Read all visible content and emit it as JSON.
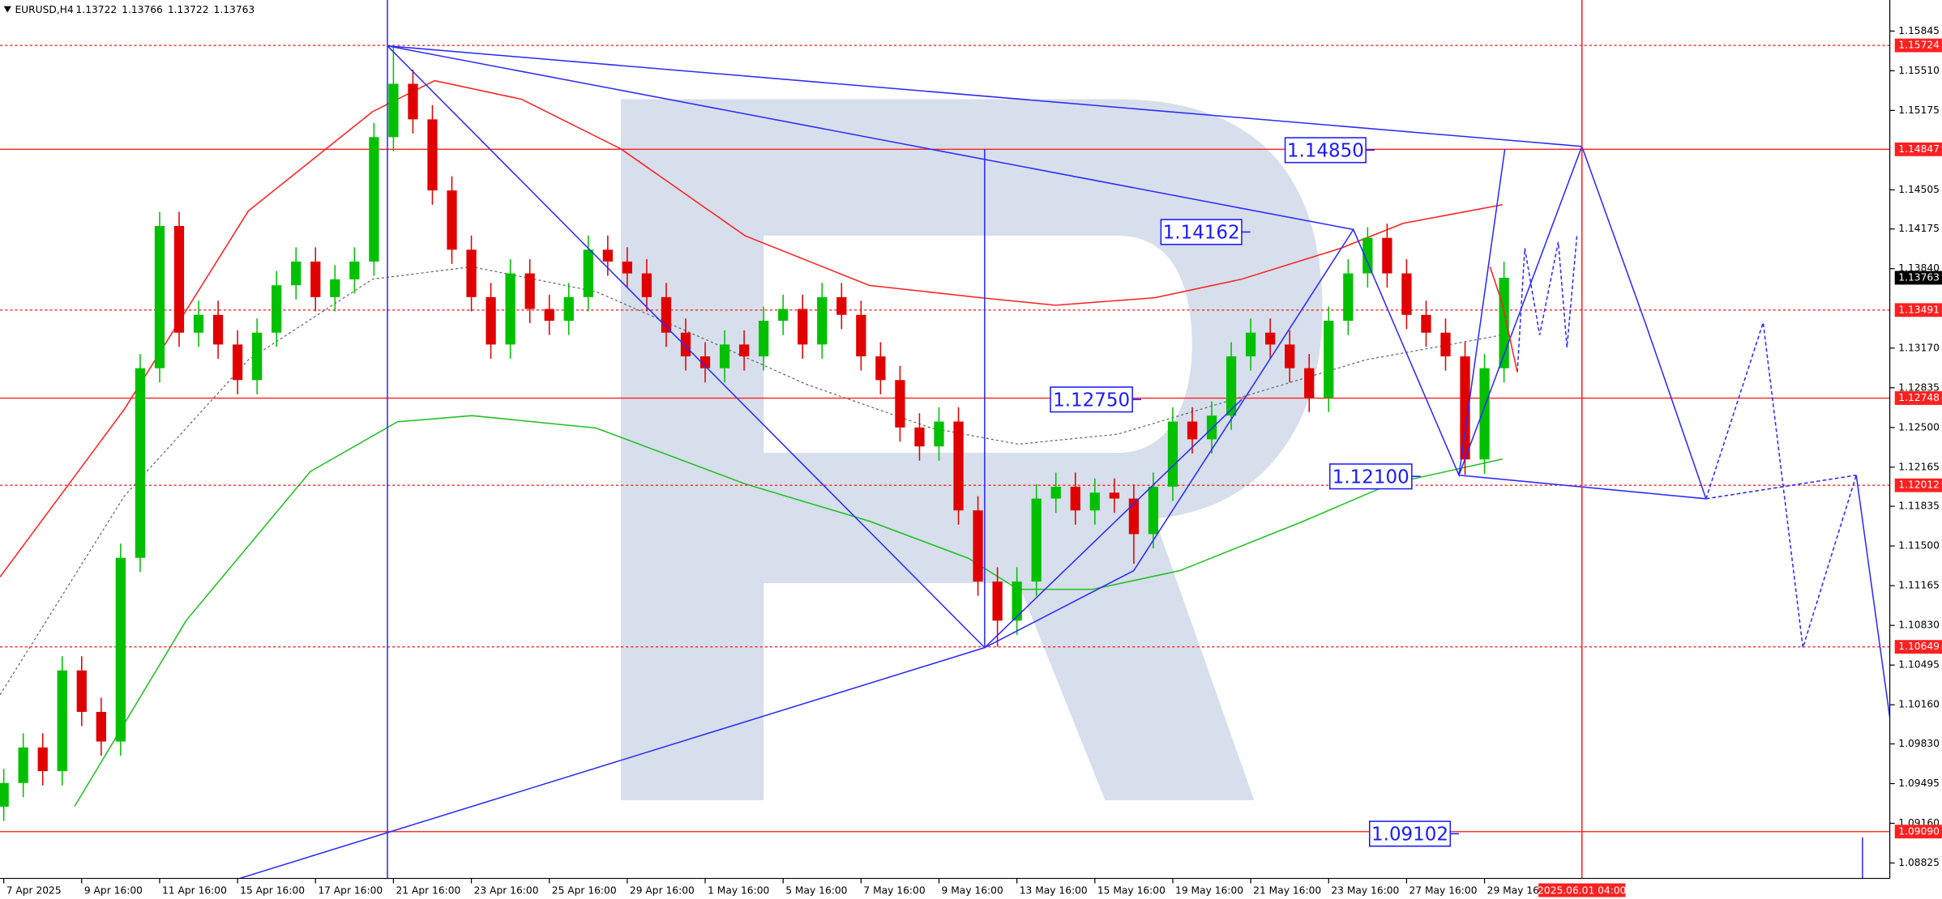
{
  "chart_data": {
    "type": "candlestick",
    "symbol": "EURUSD,H4",
    "quote": [
      1.13722,
      1.13766,
      1.13722,
      1.13763
    ],
    "up_color": "#00c000",
    "down_color": "#e00000",
    "ylim": [
      1.08695,
      1.16107
    ],
    "yticks": [
      1.15845,
      {
        "value": 1.1551,
        "label": "1.15510"
      },
      1.15175,
      1.14505,
      1.14175,
      {
        "value": 1.1384,
        "label": "1.13840"
      },
      {
        "value": 1.1317,
        "label": "1.13170"
      },
      1.12835,
      {
        "value": 1.125,
        "label": "1.12500"
      },
      1.12165,
      1.11835,
      {
        "value": 1.115,
        "label": "1.11500"
      },
      1.11165,
      {
        "value": 1.1083,
        "label": "1.10830"
      },
      1.10495,
      {
        "value": 1.1016,
        "label": "1.10160"
      },
      {
        "value": 1.0983,
        "label": "1.09830"
      },
      1.09495,
      {
        "value": 1.0916,
        "label": "1.09160"
      },
      1.08825
    ],
    "xlim": [
      -0.57,
      290.4
    ],
    "xticks": [
      {
        "value": 0,
        "label": "7 Apr 2025"
      },
      {
        "value": 12,
        "label": "9 Apr 16:00"
      },
      {
        "value": 24,
        "label": "11 Apr 16:00"
      },
      {
        "value": 36,
        "label": "15 Apr 16:00"
      },
      {
        "value": 48,
        "label": "17 Apr 16:00"
      },
      {
        "value": 60,
        "label": "21 Apr 16:00"
      },
      {
        "value": 72,
        "label": "23 Apr 16:00"
      },
      {
        "value": 84,
        "label": "25 Apr 16:00"
      },
      {
        "value": 96,
        "label": "29 Apr 16:00"
      },
      {
        "value": 108,
        "label": "1 May 16:00"
      },
      {
        "value": 120,
        "label": "5 May 16:00"
      },
      {
        "value": 132,
        "label": "7 May 16:00"
      },
      {
        "value": 144,
        "label": "9 May 16:00"
      },
      {
        "value": 156,
        "label": "13 May 16:00"
      },
      {
        "value": 168,
        "label": "15 May 16:00"
      },
      {
        "value": 180,
        "label": "19 May 16:00"
      },
      {
        "value": 192,
        "label": "21 May 16:00"
      },
      {
        "value": 204,
        "label": "23 May 16:00"
      },
      {
        "value": 216,
        "label": "27 May 16:00"
      },
      {
        "value": 228,
        "label": "29 May 16:00"
      }
    ],
    "cursor": {
      "value": 243,
      "label": "2025.06.01 04:00"
    },
    "current_price": 1.13763,
    "levels": [
      {
        "value": 1.15724,
        "dash": "dotted"
      },
      {
        "value": 1.14847,
        "dash": "solid"
      },
      {
        "value": 1.13491,
        "dash": "dotted"
      },
      {
        "value": 1.12748,
        "dash": "solid"
      },
      {
        "value": 1.12012,
        "dash": "dotted"
      },
      {
        "value": 1.10649,
        "dash": "dotted"
      },
      {
        "value": 1.0909,
        "label": "1.09090",
        "dash": "solid"
      }
    ],
    "annotations": [
      "1.14850",
      "1.14162",
      "1.12750",
      "1.12100",
      "1.09102"
    ],
    "x": [
      0,
      3,
      6,
      9,
      12,
      15,
      18,
      21,
      24,
      27,
      30,
      33,
      36,
      39,
      42,
      45,
      48,
      51,
      54,
      57,
      60,
      63,
      66,
      69,
      72,
      75,
      78,
      81,
      84,
      87,
      90,
      93,
      96,
      99,
      102,
      105,
      108,
      111,
      114,
      117,
      120,
      123,
      126,
      129,
      132,
      135,
      138,
      141,
      144,
      147,
      150,
      153,
      156,
      159,
      162,
      165,
      168,
      171,
      174,
      177,
      180,
      183,
      186,
      189,
      192,
      195,
      198,
      201,
      204,
      207,
      210,
      213,
      216,
      219,
      222,
      225,
      228,
      231
    ],
    "open": [
      1.093,
      1.095,
      1.098,
      1.096,
      1.1045,
      1.101,
      1.0985,
      1.114,
      1.13,
      1.142,
      1.133,
      1.1345,
      1.132,
      1.129,
      1.133,
      1.137,
      1.139,
      1.136,
      1.1375,
      1.139,
      1.1495,
      1.154,
      1.151,
      1.145,
      1.14,
      1.136,
      1.132,
      1.138,
      1.135,
      1.134,
      1.136,
      1.14,
      1.139,
      1.138,
      1.136,
      1.133,
      1.131,
      1.13,
      1.132,
      1.131,
      1.134,
      1.135,
      1.132,
      1.136,
      1.1345,
      1.131,
      1.129,
      1.125,
      1.1234,
      1.1255,
      1.118,
      1.112,
      1.1087,
      1.112,
      1.119,
      1.12,
      1.118,
      1.1195,
      1.119,
      1.116,
      1.12,
      1.1255,
      1.124,
      1.126,
      1.131,
      1.133,
      1.132,
      1.13,
      1.1275,
      1.134,
      1.138,
      1.141,
      1.138,
      1.1345,
      1.133,
      1.131,
      1.1223,
      1.13
    ],
    "high": [
      1.0962,
      1.0992,
      1.0992,
      1.1057,
      1.1057,
      1.1022,
      1.1152,
      1.1312,
      1.1432,
      1.1432,
      1.1357,
      1.1357,
      1.1332,
      1.1342,
      1.1382,
      1.1402,
      1.1402,
      1.1387,
      1.1402,
      1.1507,
      1.15724,
      1.1552,
      1.1522,
      1.1462,
      1.1412,
      1.1372,
      1.1392,
      1.1392,
      1.1362,
      1.1372,
      1.1412,
      1.1412,
      1.1402,
      1.1392,
      1.1372,
      1.1342,
      1.1322,
      1.1332,
      1.1332,
      1.1352,
      1.1362,
      1.1362,
      1.1372,
      1.1372,
      1.1357,
      1.1322,
      1.1302,
      1.1262,
      1.1267,
      1.1267,
      1.1192,
      1.1132,
      1.1132,
      1.1202,
      1.1212,
      1.1212,
      1.1207,
      1.1207,
      1.1202,
      1.1212,
      1.1267,
      1.1267,
      1.1272,
      1.1322,
      1.1342,
      1.1342,
      1.1332,
      1.1312,
      1.1352,
      1.1392,
      1.1419,
      1.1422,
      1.1392,
      1.1357,
      1.1342,
      1.1322,
      1.1312,
      1.139
    ],
    "low": [
      1.0918,
      1.0938,
      1.0948,
      1.0948,
      1.0998,
      1.0973,
      1.0973,
      1.1128,
      1.1288,
      1.1318,
      1.1318,
      1.1308,
      1.1278,
      1.1278,
      1.1318,
      1.1358,
      1.1348,
      1.1348,
      1.1363,
      1.1378,
      1.1483,
      1.1498,
      1.1438,
      1.1388,
      1.1348,
      1.1308,
      1.1308,
      1.1338,
      1.1328,
      1.1328,
      1.1348,
      1.1378,
      1.1368,
      1.1348,
      1.1318,
      1.1298,
      1.1288,
      1.1288,
      1.1298,
      1.1298,
      1.1328,
      1.1308,
      1.1308,
      1.1333,
      1.1298,
      1.1278,
      1.1238,
      1.1222,
      1.1222,
      1.1168,
      1.1108,
      1.10649,
      1.1075,
      1.1108,
      1.1178,
      1.1168,
      1.1168,
      1.1178,
      1.1135,
      1.1148,
      1.1188,
      1.1228,
      1.1228,
      1.1248,
      1.1298,
      1.1308,
      1.1288,
      1.1263,
      1.1263,
      1.1328,
      1.1368,
      1.1368,
      1.1333,
      1.1318,
      1.1298,
      1.121,
      1.1211,
      1.1288
    ],
    "close": [
      1.095,
      1.098,
      1.096,
      1.1045,
      1.101,
      1.0985,
      1.114,
      1.13,
      1.142,
      1.133,
      1.1345,
      1.132,
      1.129,
      1.133,
      1.137,
      1.139,
      1.136,
      1.1375,
      1.139,
      1.1495,
      1.154,
      1.151,
      1.145,
      1.14,
      1.136,
      1.132,
      1.138,
      1.135,
      1.134,
      1.136,
      1.14,
      1.139,
      1.138,
      1.136,
      1.133,
      1.131,
      1.13,
      1.132,
      1.131,
      1.134,
      1.135,
      1.132,
      1.136,
      1.1345,
      1.131,
      1.129,
      1.125,
      1.1234,
      1.1255,
      1.118,
      1.112,
      1.1087,
      1.112,
      1.119,
      1.12,
      1.118,
      1.1195,
      1.119,
      1.116,
      1.12,
      1.1255,
      1.124,
      1.126,
      1.131,
      1.133,
      1.132,
      1.13,
      1.1275,
      1.134,
      1.138,
      1.141,
      1.138,
      1.1345,
      1.133,
      1.131,
      1.1223,
      1.13,
      1.13763
    ]
  }
}
